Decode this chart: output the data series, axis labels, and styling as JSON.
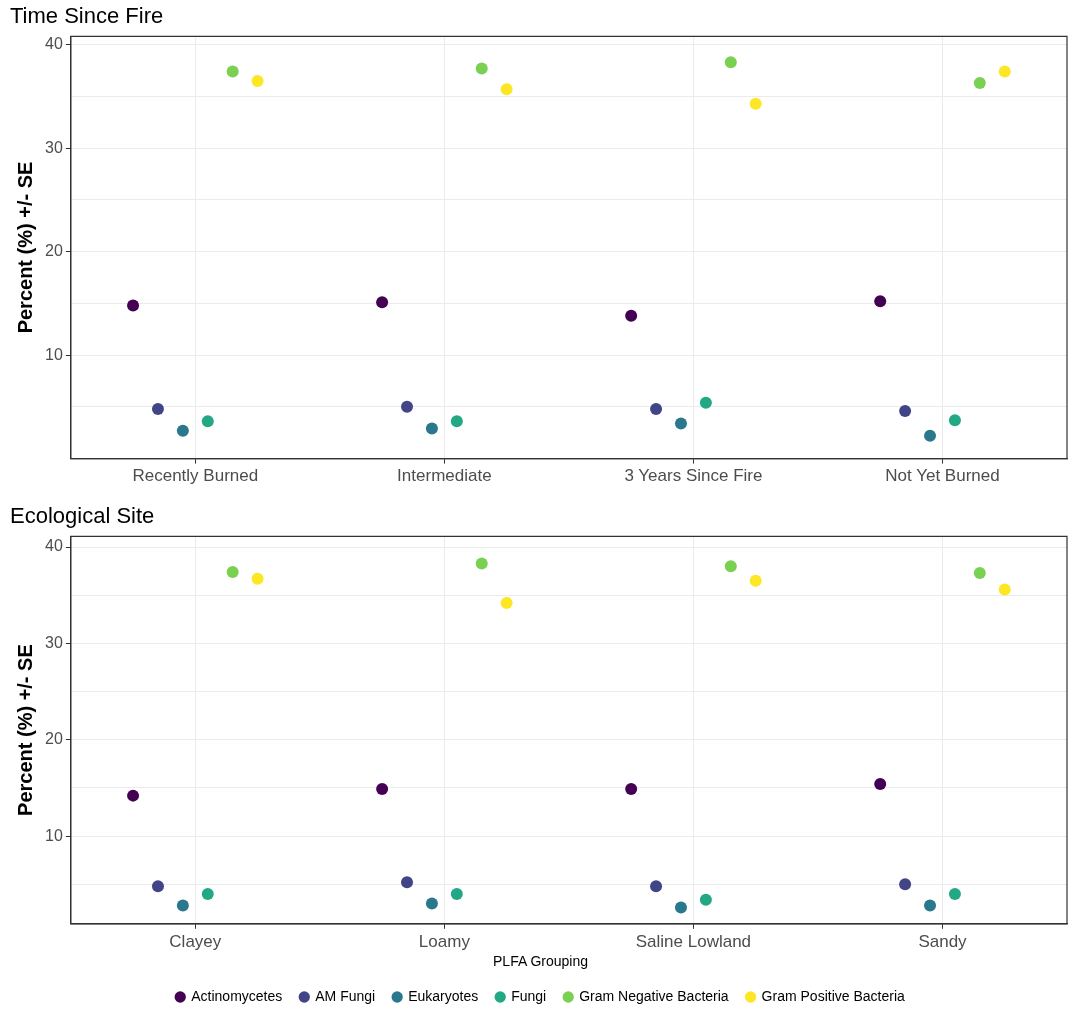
{
  "chart_data": [
    {
      "type": "scatter",
      "title": "Time Since Fire",
      "ylabel": "Percent (%) +/- SE",
      "categories": [
        "Recently Burned",
        "Intermediate",
        "3 Years Since Fire",
        "Not Yet Burned"
      ],
      "series": [
        {
          "color": "#440154",
          "values": [
            14.8,
            15.1,
            13.8,
            15.2
          ]
        },
        {
          "color": "#414487",
          "values": [
            4.8,
            5.0,
            4.8,
            4.6
          ]
        },
        {
          "color": "#2a788e",
          "values": [
            2.7,
            2.9,
            3.4,
            2.2
          ]
        },
        {
          "color": "#22a884",
          "values": [
            3.6,
            3.6,
            5.4,
            3.7
          ]
        },
        {
          "color": "#7ad151",
          "values": [
            37.4,
            37.7,
            38.3,
            36.3
          ]
        },
        {
          "color": "#fde725",
          "values": [
            36.5,
            35.7,
            34.3,
            37.4
          ]
        }
      ],
      "ylim": [
        0,
        40.8
      ],
      "yticks": [
        {
          "value": 5,
          "label": null
        },
        10,
        {
          "value": 15,
          "label": null
        },
        20,
        {
          "value": 25,
          "label": null
        },
        30,
        {
          "value": 35,
          "label": null
        },
        40
      ],
      "grid": true,
      "marker": "circle",
      "legend": false
    },
    {
      "type": "scatter",
      "title": "Ecological Site",
      "ylabel": "Percent (%) +/- SE",
      "legend_title": "PLFA Grouping",
      "categories": [
        "Clayey",
        "Loamy",
        "Saline Lowland",
        "Sandy"
      ],
      "series": [
        {
          "name": "Actinomycetes",
          "color": "#440154",
          "values": [
            14.2,
            14.9,
            14.9,
            15.4
          ]
        },
        {
          "name": "AM Fungi",
          "color": "#414487",
          "values": [
            4.8,
            5.2,
            4.8,
            5.0
          ]
        },
        {
          "name": "Eukaryotes",
          "color": "#2a788e",
          "values": [
            2.8,
            3.0,
            2.6,
            2.8
          ]
        },
        {
          "name": "Fungi",
          "color": "#22a884",
          "values": [
            4.0,
            4.0,
            3.4,
            4.0
          ]
        },
        {
          "name": "Gram Negative Bacteria",
          "color": "#7ad151",
          "values": [
            37.4,
            38.3,
            38.0,
            37.3
          ]
        },
        {
          "name": "Gram Positive Bacteria",
          "color": "#fde725",
          "values": [
            36.7,
            34.2,
            36.5,
            35.6
          ]
        }
      ],
      "ylim": [
        0.9,
        41.1
      ],
      "yticks": [
        {
          "value": 5,
          "label": null
        },
        10,
        {
          "value": 15,
          "label": null
        },
        20,
        {
          "value": 25,
          "label": null
        },
        30,
        {
          "value": 35,
          "label": null
        },
        40
      ],
      "grid": true,
      "marker": "circle",
      "legend": "bottom"
    }
  ]
}
